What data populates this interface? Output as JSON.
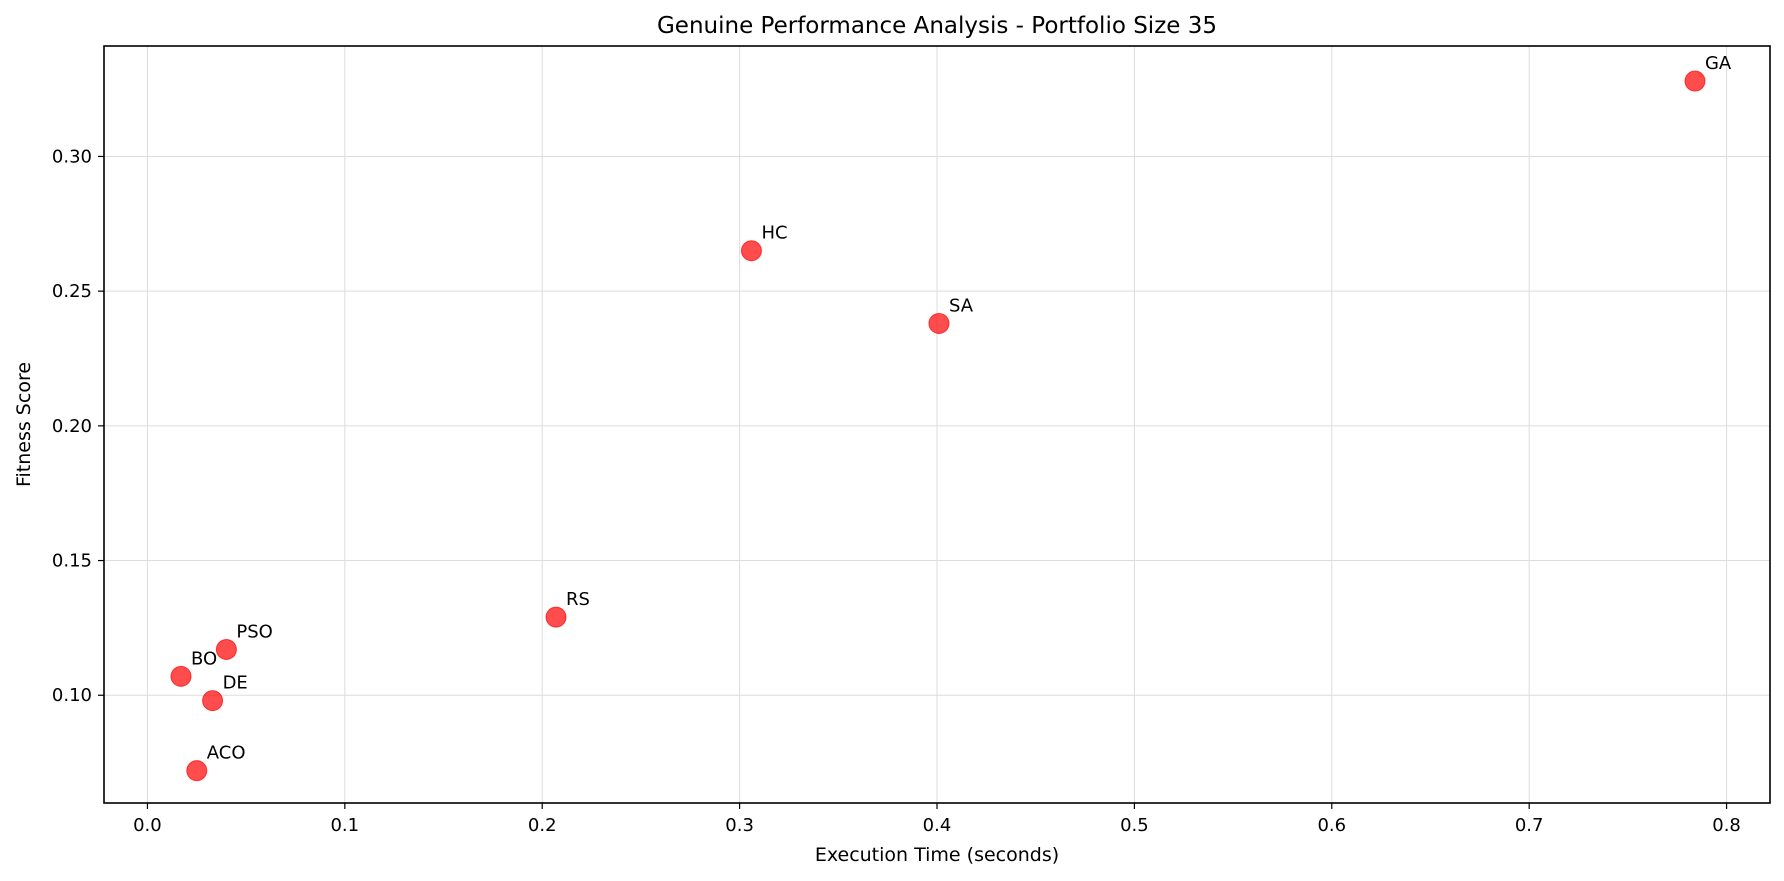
{
  "chart_data": {
    "type": "scatter",
    "title": "Genuine Performance Analysis - Portfolio Size 35",
    "xlabel": "Execution Time (seconds)",
    "ylabel": "Fitness Score",
    "xlim": [
      -0.022,
      0.822
    ],
    "ylim": [
      0.06,
      0.341
    ],
    "xticks": [
      0.0,
      0.1,
      0.2,
      0.3,
      0.4,
      0.5,
      0.6,
      0.7,
      0.8
    ],
    "yticks": [
      0.1,
      0.15,
      0.2,
      0.25,
      0.3
    ],
    "xtick_labels": [
      "0.0",
      "0.1",
      "0.2",
      "0.3",
      "0.4",
      "0.5",
      "0.6",
      "0.7",
      "0.8"
    ],
    "ytick_labels": [
      "0.10",
      "0.15",
      "0.20",
      "0.25",
      "0.30"
    ],
    "grid": true,
    "marker_color": "#ff0000",
    "marker_opacity": 0.7,
    "points": [
      {
        "label": "GA",
        "x": 0.784,
        "y": 0.328
      },
      {
        "label": "HC",
        "x": 0.306,
        "y": 0.265
      },
      {
        "label": "SA",
        "x": 0.401,
        "y": 0.238
      },
      {
        "label": "RS",
        "x": 0.207,
        "y": 0.129
      },
      {
        "label": "PSO",
        "x": 0.04,
        "y": 0.117
      },
      {
        "label": "BO",
        "x": 0.017,
        "y": 0.107
      },
      {
        "label": "DE",
        "x": 0.033,
        "y": 0.098
      },
      {
        "label": "ACO",
        "x": 0.025,
        "y": 0.072
      }
    ]
  }
}
